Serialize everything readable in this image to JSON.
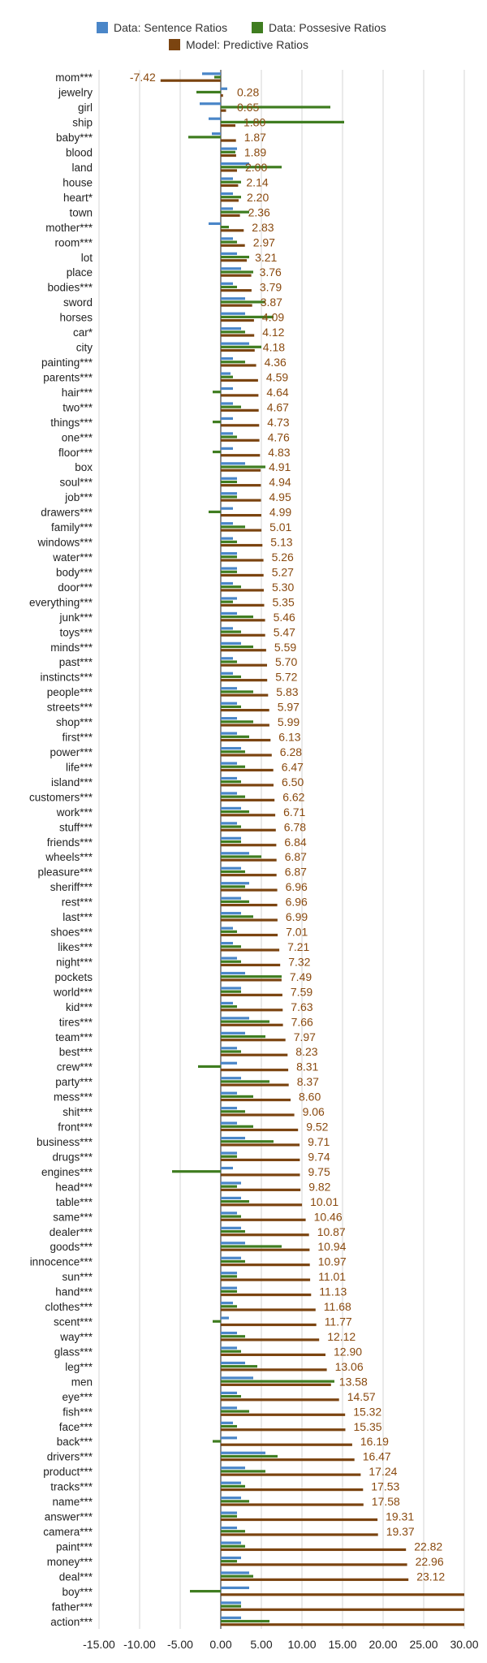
{
  "chart_data": {
    "type": "bar",
    "orientation": "horizontal",
    "xlim": [
      -15,
      30
    ],
    "x_ticks": [
      "-15.00",
      "-10.00",
      "-5.00",
      "0.00",
      "5.00",
      "10.00",
      "15.00",
      "20.00",
      "25.00",
      "30.00"
    ],
    "grid": true,
    "legend_position": "top",
    "series": [
      {
        "name": "Data: Sentence Ratios",
        "color": "#4a86c8"
      },
      {
        "name": "Data: Possesive Ratios",
        "color": "#3f7d20"
      },
      {
        "name": "Model: Predictive Ratios",
        "color": "#7b4410"
      }
    ],
    "label_color": "#8a4a0f",
    "categories": [
      "mom***",
      "jewelry",
      "girl",
      "ship",
      "baby***",
      "blood",
      "land",
      "house",
      "heart*",
      "town",
      "mother***",
      "room***",
      "lot",
      "place",
      "bodies***",
      "sword",
      "horses",
      "car*",
      "city",
      "painting***",
      "parents***",
      "hair***",
      "two***",
      "things***",
      "one***",
      "floor***",
      "box",
      "soul***",
      "job***",
      "drawers***",
      "family***",
      "windows***",
      "water***",
      "body***",
      "door***",
      "everything***",
      "junk***",
      "toys***",
      "minds***",
      "past***",
      "instincts***",
      "people***",
      "streets***",
      "shop***",
      "first***",
      "power***",
      "life***",
      "island***",
      "customers***",
      "work***",
      "stuff***",
      "friends***",
      "wheels***",
      "pleasure***",
      "sheriff***",
      "rest***",
      "last***",
      "shoes***",
      "likes***",
      "night***",
      "pockets",
      "world***",
      "kid***",
      "tires***",
      "team***",
      "best***",
      "crew***",
      "party***",
      "mess***",
      "shit***",
      "front***",
      "business***",
      "drugs***",
      "engines***",
      "head***",
      "table***",
      "same***",
      "dealer***",
      "goods***",
      "innocence***",
      "sun***",
      "hand***",
      "clothes***",
      "scent***",
      "way***",
      "glass***",
      "leg***",
      "men",
      "eye***",
      "fish***",
      "face***",
      "back***",
      "drivers***",
      "product***",
      "tracks***",
      "name***",
      "answer***",
      "camera***",
      "paint***",
      "money***",
      "deal***",
      "boy***",
      "father***",
      "action***"
    ],
    "predictive_labels": [
      "-7.42",
      "0.28",
      "0.65",
      "1.80",
      "1.87",
      "1.89",
      "2.00",
      "2.14",
      "2.20",
      "2.36",
      "2.83",
      "2.97",
      "3.21",
      "3.76",
      "3.79",
      "3.87",
      "4.09",
      "4.12",
      "4.18",
      "4.36",
      "4.59",
      "4.64",
      "4.67",
      "4.73",
      "4.76",
      "4.83",
      "4.91",
      "4.94",
      "4.95",
      "4.99",
      "5.01",
      "5.13",
      "5.26",
      "5.27",
      "5.30",
      "5.35",
      "5.46",
      "5.47",
      "5.59",
      "5.70",
      "5.72",
      "5.83",
      "5.97",
      "5.99",
      "6.13",
      "6.28",
      "6.47",
      "6.50",
      "6.62",
      "6.71",
      "6.78",
      "6.84",
      "6.87",
      "6.87",
      "6.96",
      "6.96",
      "6.99",
      "7.01",
      "7.21",
      "7.32",
      "7.49",
      "7.59",
      "7.63",
      "7.66",
      "7.97",
      "8.23",
      "8.31",
      "8.37",
      "8.60",
      "9.06",
      "9.52",
      "9.71",
      "9.74",
      "9.75",
      "9.82",
      "10.01",
      "10.46",
      "10.87",
      "10.94",
      "10.97",
      "11.01",
      "11.13",
      "11.68",
      "11.77",
      "12.12",
      "12.90",
      "13.06",
      "13.58",
      "14.57",
      "15.32",
      "15.35",
      "16.19",
      "16.47",
      "17.24",
      "17.53",
      "17.58",
      "19.31",
      "19.37",
      "22.82",
      "22.96",
      "23.12",
      "",
      "",
      ""
    ],
    "predictive_values": [
      -7.42,
      0.28,
      0.65,
      1.8,
      1.87,
      1.89,
      2.0,
      2.14,
      2.2,
      2.36,
      2.83,
      2.97,
      3.21,
      3.76,
      3.79,
      3.87,
      4.09,
      4.12,
      4.18,
      4.36,
      4.59,
      4.64,
      4.67,
      4.73,
      4.76,
      4.83,
      4.91,
      4.94,
      4.95,
      4.99,
      5.01,
      5.13,
      5.26,
      5.27,
      5.3,
      5.35,
      5.46,
      5.47,
      5.59,
      5.7,
      5.72,
      5.83,
      5.97,
      5.99,
      6.13,
      6.28,
      6.47,
      6.5,
      6.62,
      6.71,
      6.78,
      6.84,
      6.87,
      6.87,
      6.96,
      6.96,
      6.99,
      7.01,
      7.21,
      7.32,
      7.49,
      7.59,
      7.63,
      7.66,
      7.97,
      8.23,
      8.31,
      8.37,
      8.6,
      9.06,
      9.52,
      9.71,
      9.74,
      9.75,
      9.82,
      10.01,
      10.46,
      10.87,
      10.94,
      10.97,
      11.01,
      11.13,
      11.68,
      11.77,
      12.12,
      12.9,
      13.06,
      13.58,
      14.57,
      15.32,
      15.35,
      16.19,
      16.47,
      17.24,
      17.53,
      17.58,
      19.31,
      19.37,
      22.82,
      22.96,
      23.12,
      30,
      30,
      30
    ],
    "sentence_values": [
      -2.3,
      0.8,
      -2.6,
      -1.5,
      -1.1,
      2.0,
      3.5,
      1.5,
      1.5,
      1.5,
      -1.5,
      1.5,
      2.0,
      2.5,
      1.5,
      3.0,
      3.0,
      2.5,
      3.5,
      1.5,
      1.2,
      1.5,
      1.5,
      1.5,
      1.5,
      1.5,
      3.0,
      2.0,
      2.0,
      1.5,
      1.5,
      1.5,
      2.0,
      2.0,
      1.5,
      2.0,
      2.0,
      1.5,
      2.5,
      1.5,
      1.5,
      2.0,
      2.0,
      2.0,
      2.0,
      2.5,
      2.0,
      2.0,
      2.0,
      2.5,
      2.0,
      2.5,
      3.5,
      2.5,
      3.5,
      2.5,
      2.5,
      1.5,
      1.5,
      2.0,
      3.0,
      2.5,
      1.5,
      3.5,
      3.0,
      2.0,
      2.0,
      2.5,
      2.0,
      2.0,
      2.0,
      3.0,
      2.0,
      1.5,
      2.5,
      2.5,
      2.0,
      2.5,
      3.0,
      2.5,
      2.0,
      2.0,
      1.5,
      1.0,
      2.0,
      2.0,
      3.0,
      4.0,
      2.0,
      2.0,
      1.5,
      2.0,
      5.5,
      3.0,
      2.5,
      2.5,
      2.0,
      2.0,
      2.5,
      2.5,
      3.5,
      3.5,
      2.5,
      2.5
    ],
    "possessive_values": [
      -0.8,
      -3.0,
      13.5,
      15.2,
      -4.0,
      1.8,
      7.5,
      2.5,
      2.5,
      3.5,
      1.0,
      2.0,
      3.5,
      4.0,
      2.0,
      5.5,
      6.5,
      3.0,
      5.0,
      3.0,
      1.5,
      -1.0,
      2.5,
      -1.0,
      2.0,
      -1.0,
      5.5,
      2.0,
      2.0,
      -1.5,
      3.0,
      2.0,
      2.0,
      2.0,
      2.5,
      1.5,
      4.0,
      2.5,
      4.0,
      2.0,
      2.5,
      4.0,
      2.5,
      4.0,
      3.5,
      3.0,
      3.0,
      2.5,
      3.0,
      3.5,
      2.5,
      2.5,
      5.0,
      3.0,
      3.0,
      3.5,
      4.0,
      2.0,
      2.5,
      2.5,
      7.5,
      2.5,
      2.0,
      6.0,
      5.5,
      2.5,
      -2.8,
      6.0,
      4.0,
      3.0,
      4.0,
      6.5,
      2.0,
      -6.0,
      2.0,
      3.5,
      2.5,
      3.0,
      7.5,
      3.0,
      2.0,
      2.0,
      2.0,
      -1.0,
      3.0,
      2.5,
      4.5,
      14.0,
      2.5,
      3.5,
      2.0,
      -1.0,
      7.0,
      5.5,
      3.0,
      3.5,
      2.0,
      3.0,
      3.0,
      2.0,
      4.0,
      -3.8,
      2.5,
      6.0
    ]
  }
}
